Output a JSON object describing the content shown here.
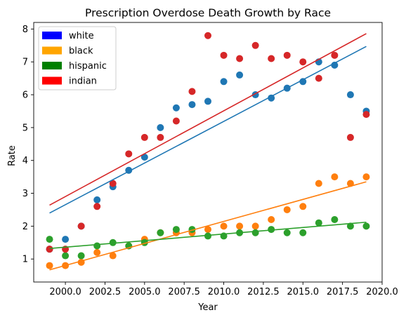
{
  "chart_data": {
    "type": "scatter",
    "title": "Prescription Overdose Death Growth by Race",
    "xlabel": "Year",
    "ylabel": "Rate",
    "xlim": [
      1998.0,
      2020.0
    ],
    "ylim": [
      0.3,
      8.2
    ],
    "x_ticks": [
      2000.0,
      2002.5,
      2005.0,
      2007.5,
      2010.0,
      2012.5,
      2015.0,
      2017.5,
      2020.0
    ],
    "x_tick_labels": [
      "2000.0",
      "2002.5",
      "2005.0",
      "2007.5",
      "2010.0",
      "2012.5",
      "2015.0",
      "2017.5",
      "2020.0"
    ],
    "y_ticks": [
      1,
      2,
      3,
      4,
      5,
      6,
      7,
      8
    ],
    "y_tick_labels": [
      "1",
      "2",
      "3",
      "4",
      "5",
      "6",
      "7",
      "8"
    ],
    "grid": false,
    "legend": {
      "placement": "top-left",
      "entries": [
        {
          "label": "white",
          "color": "#0000ff"
        },
        {
          "label": "black",
          "color": "#ffa500"
        },
        {
          "label": "hispanic",
          "color": "#008000"
        },
        {
          "label": "indian",
          "color": "#ff0000"
        }
      ]
    },
    "x": [
      1999,
      2000,
      2001,
      2002,
      2003,
      2004,
      2005,
      2006,
      2007,
      2008,
      2009,
      2010,
      2011,
      2012,
      2013,
      2014,
      2015,
      2016,
      2017,
      2018,
      2019
    ],
    "series": [
      {
        "color": "#1f77b4",
        "values": [
          1.3,
          1.6,
          2.0,
          2.8,
          3.2,
          3.7,
          4.1,
          5.0,
          5.6,
          5.7,
          5.8,
          6.4,
          6.6,
          6.0,
          5.9,
          6.2,
          6.4,
          7.0,
          6.9,
          6.0,
          5.5
        ],
        "trend": [
          2.4,
          7.47
        ]
      },
      {
        "color": "#ff7f0e",
        "values": [
          0.8,
          0.8,
          0.9,
          1.2,
          1.1,
          1.4,
          1.6,
          1.8,
          1.8,
          1.8,
          1.9,
          2.0,
          2.0,
          2.0,
          2.2,
          2.5,
          2.6,
          3.3,
          3.5,
          3.3,
          3.5
        ],
        "trend": [
          0.67,
          3.35
        ]
      },
      {
        "color": "#2ca02c",
        "values": [
          1.6,
          1.1,
          1.1,
          1.4,
          1.5,
          1.4,
          1.5,
          1.8,
          1.9,
          1.9,
          1.7,
          1.7,
          1.8,
          1.8,
          1.9,
          1.8,
          1.8,
          2.1,
          2.2,
          2.0,
          2.0
        ],
        "trend": [
          1.32,
          2.12
        ]
      },
      {
        "color": "#d62728",
        "values": [
          1.3,
          1.3,
          2.0,
          2.6,
          3.3,
          4.2,
          4.7,
          4.7,
          5.2,
          6.1,
          7.8,
          7.2,
          7.1,
          7.5,
          7.1,
          7.2,
          7.0,
          6.5,
          7.2,
          4.7,
          5.4
        ],
        "trend": [
          2.64,
          7.86
        ]
      }
    ]
  }
}
